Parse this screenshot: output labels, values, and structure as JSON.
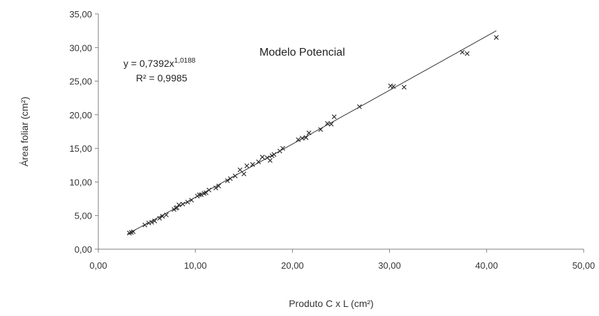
{
  "chart_data": {
    "type": "scatter",
    "xlabel": "Produto C x L  (cm²)",
    "ylabel": "Área foliar  (cm²)",
    "xlim": [
      0,
      50
    ],
    "ylim": [
      0,
      35
    ],
    "xticks": [
      "0,00",
      "10,00",
      "20,00",
      "30,00",
      "40,00",
      "50,00"
    ],
    "yticks": [
      "0,00",
      "5,00",
      "10,00",
      "15,00",
      "20,00",
      "25,00",
      "30,00",
      "35,00"
    ],
    "grid": false,
    "legend": "none",
    "annotations": {
      "model_title": "Modelo Potencial",
      "equation_prefix": "y = 0,7392x",
      "equation_exponent": "1,0188",
      "r2": "R² = 0,9985"
    },
    "trendline": {
      "type": "power",
      "a": 0.7392,
      "b": 1.0188,
      "x_range": [
        3.0,
        41.0
      ]
    },
    "series": [
      {
        "marker": "x",
        "x": [
          3.2,
          3.4,
          3.6,
          4.8,
          5.2,
          5.5,
          5.8,
          6.3,
          6.6,
          7.0,
          7.8,
          8.0,
          8.1,
          8.3,
          8.7,
          9.2,
          9.6,
          10.2,
          10.4,
          10.6,
          10.9,
          11.1,
          11.4,
          12.1,
          12.4,
          13.3,
          13.6,
          14.1,
          14.6,
          15.0,
          15.3,
          15.9,
          16.5,
          16.9,
          17.4,
          17.7,
          17.9,
          18.1,
          18.7,
          19.0,
          20.6,
          21.0,
          21.4,
          21.7,
          22.9,
          23.6,
          24.0,
          24.3,
          26.9,
          30.1,
          30.4,
          31.5,
          37.5,
          38.0,
          41.0
        ],
        "y": [
          2.4,
          2.5,
          2.6,
          3.6,
          3.9,
          4.0,
          4.2,
          4.6,
          4.9,
          5.1,
          5.9,
          6.1,
          6.2,
          6.6,
          6.7,
          7.0,
          7.3,
          7.9,
          8.1,
          8.1,
          8.3,
          8.4,
          8.8,
          9.1,
          9.4,
          10.2,
          10.5,
          10.9,
          11.8,
          11.2,
          12.4,
          12.6,
          13.0,
          13.7,
          13.6,
          13.2,
          13.9,
          14.1,
          14.6,
          15.0,
          16.3,
          16.5,
          16.6,
          17.3,
          17.8,
          18.7,
          18.6,
          19.7,
          21.2,
          24.3,
          24.2,
          24.1,
          29.3,
          29.1,
          31.5
        ]
      }
    ]
  }
}
